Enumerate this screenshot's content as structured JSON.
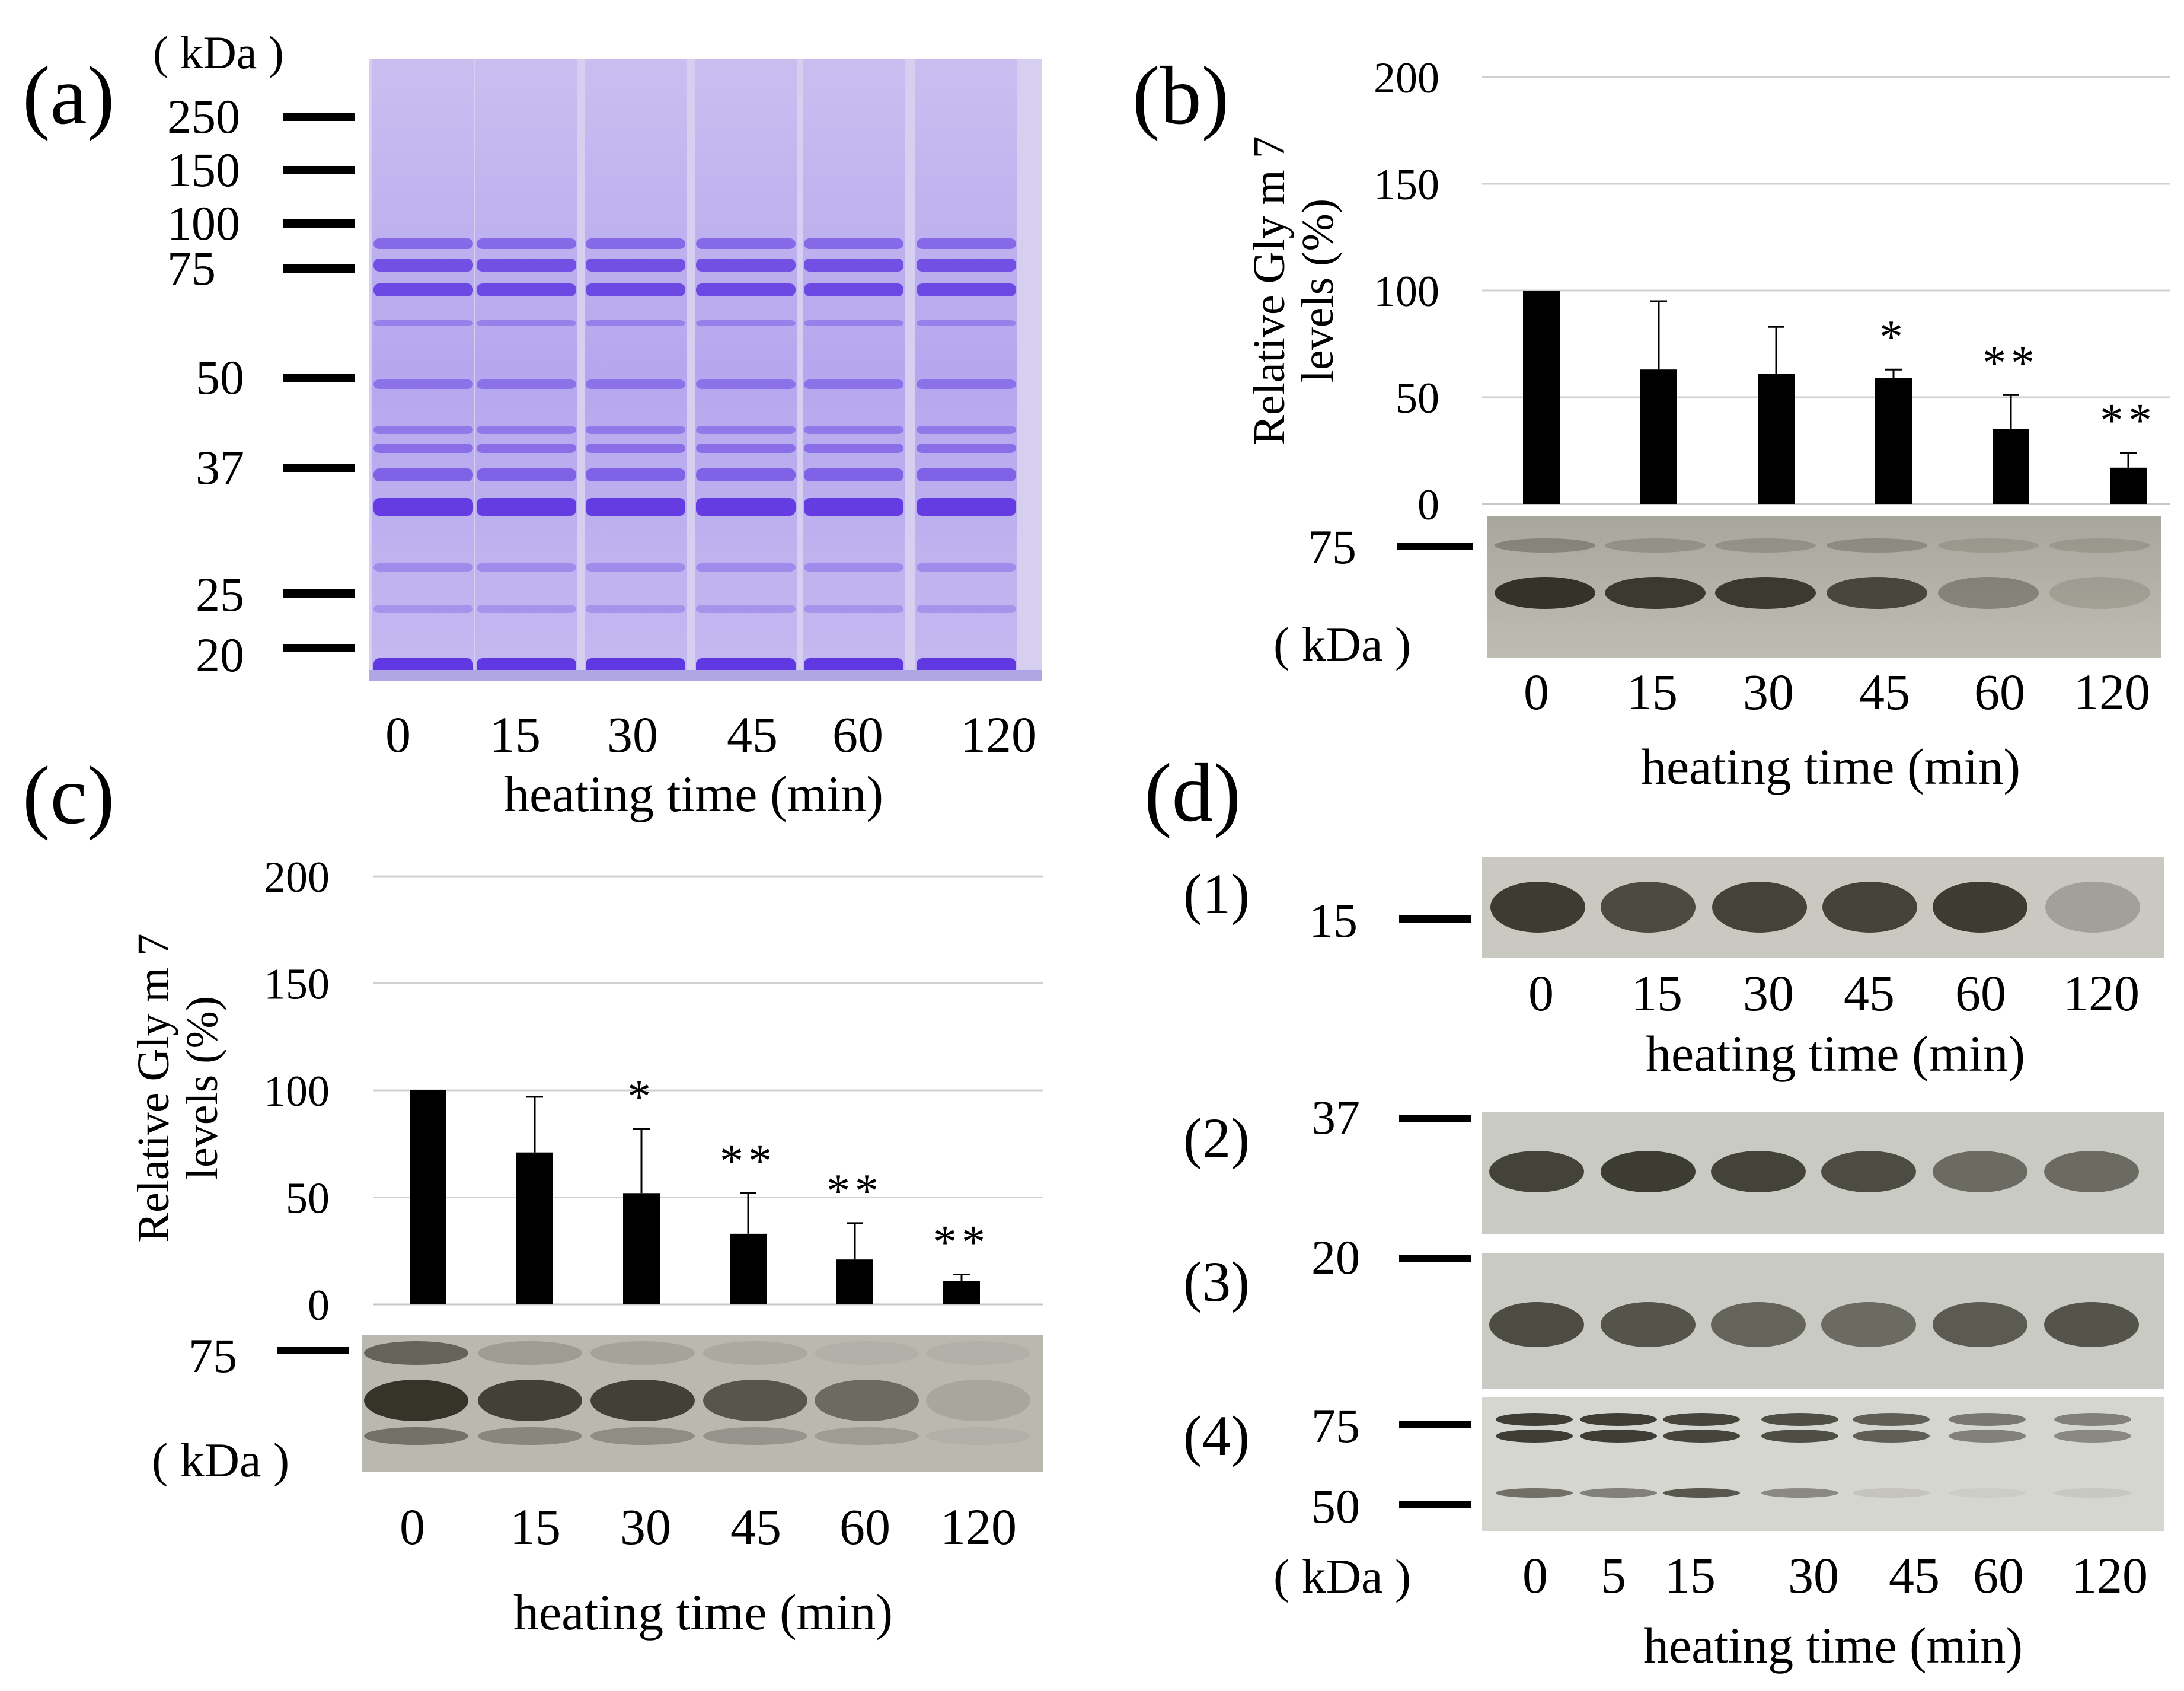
{
  "panels": {
    "a": {
      "label": "(a)",
      "unit": "( kDa )",
      "markers": [
        "250",
        "150",
        "100",
        "75",
        "50",
        "37",
        "25",
        "20"
      ],
      "lanes": [
        "0",
        "15",
        "30",
        "45",
        "60",
        "120"
      ],
      "xlabel": "heating time (min)"
    },
    "b": {
      "label": "(b)",
      "blot_marker": "75",
      "unit": "( kDa )",
      "lanes": [
        "0",
        "15",
        "30",
        "45",
        "60",
        "120"
      ],
      "xlabel": "heating time (min)"
    },
    "c": {
      "label": "(c)",
      "blot_marker": "75",
      "unit": "( kDa )",
      "lanes": [
        "0",
        "15",
        "30",
        "45",
        "60",
        "120"
      ],
      "xlabel": "heating time (min)"
    },
    "d": {
      "label": "(d)",
      "sub1": {
        "label": "(1)",
        "marker": "15",
        "lanes": [
          "0",
          "15",
          "30",
          "45",
          "60",
          "120"
        ],
        "xlabel": "heating time (min)"
      },
      "sub2": {
        "label": "(2)",
        "marker": "37"
      },
      "sub3": {
        "label": "(3)",
        "marker": "20"
      },
      "sub4": {
        "label": "(4)",
        "markers": [
          "75",
          "50"
        ],
        "unit": "( kDa )",
        "lanes": [
          "0",
          "5",
          "15",
          "30",
          "45",
          "60",
          "120"
        ],
        "xlabel": "heating time (min)"
      }
    }
  },
  "chart_data": [
    {
      "id": "b",
      "type": "bar",
      "categories": [
        "0",
        "15",
        "30",
        "45",
        "60",
        "120"
      ],
      "values": [
        100,
        63,
        61,
        59,
        35,
        17
      ],
      "errors": [
        0,
        32,
        22,
        4,
        16,
        7
      ],
      "significance": [
        "",
        "",
        "",
        "*",
        "**",
        "**"
      ],
      "ylabel": "Relative Gly m 7 levels (%)",
      "ylim": [
        0,
        200
      ],
      "yticks": [
        "0",
        "50",
        "100",
        "150",
        "200"
      ],
      "grid": true,
      "bar_color": "#000000"
    },
    {
      "id": "c",
      "type": "bar",
      "categories": [
        "0",
        "15",
        "30",
        "45",
        "60",
        "120"
      ],
      "values": [
        100,
        71,
        52,
        33,
        21,
        11
      ],
      "errors": [
        0,
        26,
        30,
        19,
        17,
        3
      ],
      "significance": [
        "",
        "",
        "*",
        "**",
        "**",
        "**"
      ],
      "ylabel": "Relative Gly m 7 levels (%)",
      "ylim": [
        0,
        200
      ],
      "yticks": [
        "0",
        "50",
        "100",
        "150",
        "200"
      ],
      "grid": true,
      "bar_color": "#000000"
    }
  ]
}
